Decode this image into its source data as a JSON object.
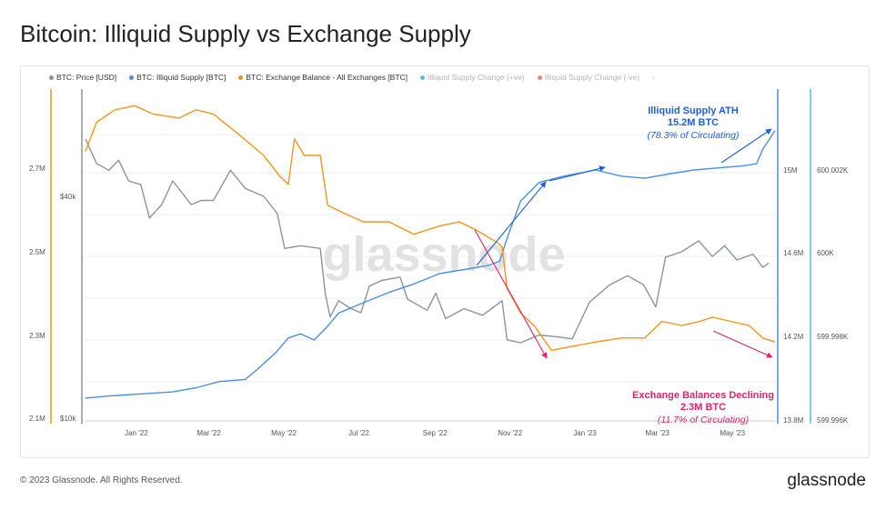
{
  "title": "Bitcoin: Illiquid Supply vs Exchange Supply",
  "footer": "© 2023 Glassnode. All Rights Reserved.",
  "logo": "glassnode",
  "watermark": "glassnode",
  "legend": [
    {
      "label": "BTC: Price [USD]",
      "color": "#8e9599",
      "faded": false
    },
    {
      "label": "BTC: Illiquid Supply [BTC]",
      "color": "#4a90e2",
      "faded": false
    },
    {
      "label": "BTC: Exchange Balance - All Exchanges [BTC]",
      "color": "#f0961e",
      "faded": false
    },
    {
      "label": "Illiquid Supply Change (+ve)",
      "color": "#4fc3d9",
      "faded": true
    },
    {
      "label": "Illiquid Supply Change (-ve)",
      "color": "#f08080",
      "faded": true
    },
    {
      "label": "-",
      "color": "",
      "faded": true
    }
  ],
  "annotations": {
    "illiquid_title": "Illiquid Supply ATH",
    "illiquid_value": "15.2M BTC",
    "illiquid_pct": "(78.3% of Circulating)",
    "exchange_title": "Exchange Balances Declining",
    "exchange_value": "2.3M BTC",
    "exchange_pct": "(11.7% of Circulating)"
  },
  "chart_data": {
    "type": "line",
    "x_ticks": [
      "Jan '22",
      "Mar '22",
      "May '22",
      "Jul '22",
      "Sep '22",
      "Nov '22",
      "Jan '23",
      "Mar '23",
      "May '23"
    ],
    "x_range": [
      "2021-12-01",
      "2023-06-15"
    ],
    "axes": {
      "exchange_balance": {
        "ticks": [
          "2.7M",
          "2.5M",
          "2.3M",
          "2.1M"
        ],
        "range": [
          2100000,
          2900000
        ]
      },
      "price_log": {
        "ticks": [
          "$40k",
          "$10k"
        ]
      },
      "illiquid_supply": {
        "ticks": [
          "15M",
          "14.6M",
          "14.2M",
          "13.8M"
        ],
        "range": [
          13800000,
          15400000
        ]
      },
      "supply_change": {
        "ticks": [
          "600.002K",
          "600K",
          "599.998K",
          "599.996K"
        ]
      }
    },
    "series": [
      {
        "name": "BTC: Price [USD]",
        "color": "#8e9599",
        "axis": "price_log",
        "points": [
          [
            "2021-12-01",
            57000
          ],
          [
            "2021-12-10",
            49000
          ],
          [
            "2021-12-20",
            47000
          ],
          [
            "2021-12-28",
            50000
          ],
          [
            "2022-01-05",
            44000
          ],
          [
            "2022-01-15",
            43000
          ],
          [
            "2022-01-22",
            35000
          ],
          [
            "2022-02-01",
            38000
          ],
          [
            "2022-02-10",
            44000
          ],
          [
            "2022-02-25",
            38000
          ],
          [
            "2022-03-05",
            39000
          ],
          [
            "2022-03-15",
            39000
          ],
          [
            "2022-03-29",
            47000
          ],
          [
            "2022-04-10",
            42000
          ],
          [
            "2022-04-25",
            40000
          ],
          [
            "2022-05-06",
            36000
          ],
          [
            "2022-05-12",
            29000
          ],
          [
            "2022-05-25",
            29500
          ],
          [
            "2022-06-10",
            29000
          ],
          [
            "2022-06-14",
            22000
          ],
          [
            "2022-06-18",
            19000
          ],
          [
            "2022-06-25",
            21000
          ],
          [
            "2022-07-05",
            20000
          ],
          [
            "2022-07-13",
            19500
          ],
          [
            "2022-07-20",
            23000
          ],
          [
            "2022-07-30",
            23800
          ],
          [
            "2022-08-14",
            24300
          ],
          [
            "2022-08-20",
            21200
          ],
          [
            "2022-09-05",
            19800
          ],
          [
            "2022-09-12",
            22000
          ],
          [
            "2022-09-20",
            18800
          ],
          [
            "2022-10-05",
            20000
          ],
          [
            "2022-10-20",
            19200
          ],
          [
            "2022-11-05",
            21000
          ],
          [
            "2022-11-09",
            16500
          ],
          [
            "2022-11-20",
            16200
          ],
          [
            "2022-12-05",
            17000
          ],
          [
            "2022-12-20",
            16800
          ],
          [
            "2023-01-01",
            16600
          ],
          [
            "2023-01-15",
            20800
          ],
          [
            "2023-01-31",
            23100
          ],
          [
            "2023-02-15",
            24500
          ],
          [
            "2023-02-28",
            23200
          ],
          [
            "2023-03-10",
            20200
          ],
          [
            "2023-03-18",
            27500
          ],
          [
            "2023-03-31",
            28400
          ],
          [
            "2023-04-14",
            30400
          ],
          [
            "2023-04-25",
            27600
          ],
          [
            "2023-05-05",
            29500
          ],
          [
            "2023-05-15",
            27000
          ],
          [
            "2023-05-28",
            28000
          ],
          [
            "2023-06-05",
            25800
          ],
          [
            "2023-06-10",
            26500
          ]
        ]
      },
      {
        "name": "BTC: Illiquid Supply [BTC]",
        "color": "#4a90e2",
        "axis": "illiquid_supply",
        "points": [
          [
            "2021-12-01",
            13910000
          ],
          [
            "2021-12-20",
            13920000
          ],
          [
            "2022-01-15",
            13930000
          ],
          [
            "2022-02-10",
            13940000
          ],
          [
            "2022-03-01",
            13960000
          ],
          [
            "2022-03-20",
            13990000
          ],
          [
            "2022-04-10",
            14000000
          ],
          [
            "2022-04-20",
            14050000
          ],
          [
            "2022-05-05",
            14130000
          ],
          [
            "2022-05-15",
            14200000
          ],
          [
            "2022-05-25",
            14220000
          ],
          [
            "2022-06-05",
            14190000
          ],
          [
            "2022-06-15",
            14250000
          ],
          [
            "2022-06-25",
            14320000
          ],
          [
            "2022-07-15",
            14370000
          ],
          [
            "2022-08-05",
            14420000
          ],
          [
            "2022-08-25",
            14460000
          ],
          [
            "2022-09-15",
            14510000
          ],
          [
            "2022-10-05",
            14530000
          ],
          [
            "2022-10-25",
            14550000
          ],
          [
            "2022-11-03",
            14570000
          ],
          [
            "2022-11-09",
            14680000
          ],
          [
            "2022-11-20",
            14860000
          ],
          [
            "2022-12-05",
            14950000
          ],
          [
            "2022-12-25",
            14980000
          ],
          [
            "2023-01-20",
            15010000
          ],
          [
            "2023-02-10",
            14980000
          ],
          [
            "2023-03-01",
            14970000
          ],
          [
            "2023-03-20",
            14990000
          ],
          [
            "2023-04-10",
            15010000
          ],
          [
            "2023-04-30",
            15020000
          ],
          [
            "2023-05-20",
            15030000
          ],
          [
            "2023-05-31",
            15040000
          ],
          [
            "2023-06-05",
            15110000
          ],
          [
            "2023-06-15",
            15200000
          ]
        ]
      },
      {
        "name": "BTC: Exchange Balance - All Exchanges [BTC]",
        "color": "#f0961e",
        "axis": "exchange_balance",
        "points": [
          [
            "2021-12-01",
            2750000
          ],
          [
            "2021-12-10",
            2820000
          ],
          [
            "2021-12-25",
            2850000
          ],
          [
            "2022-01-10",
            2860000
          ],
          [
            "2022-01-25",
            2840000
          ],
          [
            "2022-02-15",
            2830000
          ],
          [
            "2022-03-01",
            2850000
          ],
          [
            "2022-03-15",
            2840000
          ],
          [
            "2022-04-05",
            2790000
          ],
          [
            "2022-04-25",
            2740000
          ],
          [
            "2022-05-08",
            2690000
          ],
          [
            "2022-05-15",
            2670000
          ],
          [
            "2022-05-20",
            2780000
          ],
          [
            "2022-05-28",
            2740000
          ],
          [
            "2022-06-10",
            2740000
          ],
          [
            "2022-06-16",
            2620000
          ],
          [
            "2022-06-30",
            2600000
          ],
          [
            "2022-07-15",
            2580000
          ],
          [
            "2022-08-05",
            2580000
          ],
          [
            "2022-08-25",
            2550000
          ],
          [
            "2022-09-15",
            2570000
          ],
          [
            "2022-10-01",
            2580000
          ],
          [
            "2022-10-15",
            2560000
          ],
          [
            "2022-11-01",
            2530000
          ],
          [
            "2022-11-05",
            2520000
          ],
          [
            "2022-11-09",
            2420000
          ],
          [
            "2022-11-20",
            2360000
          ],
          [
            "2022-12-01",
            2330000
          ],
          [
            "2022-12-15",
            2270000
          ],
          [
            "2023-01-01",
            2280000
          ],
          [
            "2023-01-20",
            2290000
          ],
          [
            "2023-02-10",
            2300000
          ],
          [
            "2023-03-01",
            2300000
          ],
          [
            "2023-03-15",
            2340000
          ],
          [
            "2023-03-31",
            2330000
          ],
          [
            "2023-04-15",
            2340000
          ],
          [
            "2023-04-25",
            2350000
          ],
          [
            "2023-05-10",
            2340000
          ],
          [
            "2023-05-25",
            2330000
          ],
          [
            "2023-06-05",
            2300000
          ],
          [
            "2023-06-15",
            2290000
          ]
        ]
      }
    ]
  }
}
